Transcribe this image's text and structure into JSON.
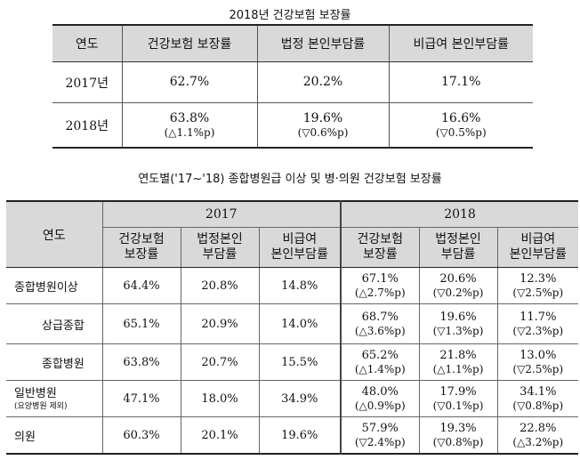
{
  "table1": {
    "title": "2018년 건강보험 보장률",
    "headers": [
      "연도",
      "건강보험 보장률",
      "법정 본인부담률",
      "비급여 본인부담률"
    ],
    "rows": [
      {
        "year": "2017년",
        "v1": "62.7%",
        "c1": "",
        "v2": "20.2%",
        "c2": "",
        "v3": "17.1%",
        "c3": ""
      },
      {
        "year": "2018년",
        "v1": "63.8%",
        "c1": "(△1.1%p)",
        "v2": "19.6%",
        "c2": "(▽0.6%p)",
        "v3": "16.6%",
        "c3": "(▽0.5%p)"
      }
    ]
  },
  "table2": {
    "title": "연도별('17~'18) 종합병원급 이상 및 병·의원 건강보험 보장률",
    "year_header": "연도",
    "year_2017": "2017",
    "year_2018": "2018",
    "col_headers": [
      {
        "l1": "건강보험",
        "l2": "보장률"
      },
      {
        "l1": "법정본인",
        "l2": "부담률"
      },
      {
        "l1": "비급여",
        "l2": "본인부담률"
      },
      {
        "l1": "건강보험",
        "l2": "보장률"
      },
      {
        "l1": "법정본인",
        "l2": "부담률"
      },
      {
        "l1": "비급여",
        "l2": "본인부담률"
      }
    ],
    "rows": [
      {
        "label": "종합병원이상",
        "sub": "",
        "a": "64.4%",
        "b": "20.8%",
        "c": "14.8%",
        "d": "67.1%",
        "dc": "(△2.7%p)",
        "e": "20.6%",
        "ec": "(▽0.2%p)",
        "f": "12.3%",
        "fc": "(▽2.5%p)"
      },
      {
        "label": "상급종합",
        "sub": "",
        "a": "65.1%",
        "b": "20.9%",
        "c": "14.0%",
        "d": "68.7%",
        "dc": "(△3.6%p)",
        "e": "19.6%",
        "ec": "(▽1.3%p)",
        "f": "11.7%",
        "fc": "(▽2.3%p)"
      },
      {
        "label": "종합병원",
        "sub": "",
        "a": "63.8%",
        "b": "20.7%",
        "c": "15.5%",
        "d": "65.2%",
        "dc": "(△1.4%p)",
        "e": "21.8%",
        "ec": "(△1.1%p)",
        "f": "13.0%",
        "fc": "(▽2.5%p)"
      },
      {
        "label": "일반병원",
        "sub": "(요양병원 제외)",
        "a": "47.1%",
        "b": "18.0%",
        "c": "34.9%",
        "d": "48.0%",
        "dc": "(△0.9%p)",
        "e": "17.9%",
        "ec": "(▽0.1%p)",
        "f": "34.1%",
        "fc": "(▽0.8%p)"
      },
      {
        "label": "의원",
        "sub": "",
        "a": "60.3%",
        "b": "20.1%",
        "c": "19.6%",
        "d": "57.9%",
        "dc": "(▽2.4%p)",
        "e": "19.3%",
        "ec": "(▽0.8%p)",
        "f": "22.8%",
        "fc": "(△3.2%p)"
      }
    ]
  }
}
